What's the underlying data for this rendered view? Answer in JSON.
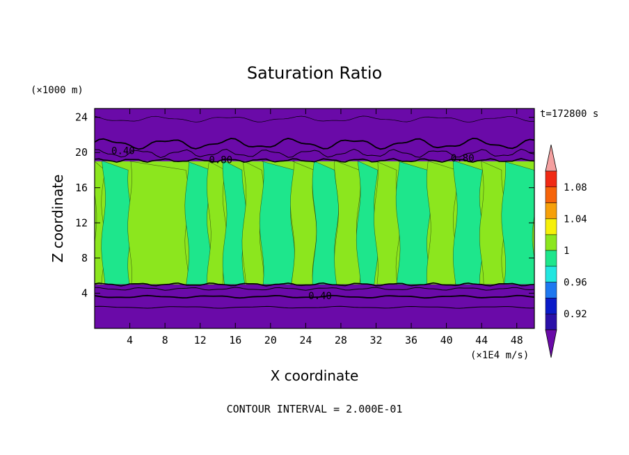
{
  "chart_data": {
    "type": "heatmap",
    "title": "Saturation Ratio",
    "xlabel": "X coordinate",
    "ylabel": "Z coordinate",
    "x_units": "(×1E4 m/s)",
    "y_units": "(×1000 m)",
    "time_label": "t=172800 s",
    "footer": "CONTOUR INTERVAL = 2.000E-01",
    "xlim": [
      0,
      50
    ],
    "ylim": [
      0,
      25
    ],
    "x_ticks": [
      4,
      8,
      12,
      16,
      20,
      24,
      28,
      32,
      36,
      40,
      44,
      48
    ],
    "y_ticks": [
      4,
      8,
      12,
      16,
      20,
      24
    ],
    "grid": false,
    "legend_position": "right",
    "colorbar": {
      "labels": [
        "0.92",
        "0.96",
        "1",
        "1.04",
        "1.08"
      ],
      "colors": [
        "#6a0aa8",
        "#2a10a8",
        "#0a1ac8",
        "#1e78f0",
        "#22e6e0",
        "#1ee68c",
        "#8ce61e",
        "#f6f00a",
        "#f6a00a",
        "#f6640a",
        "#f02a14",
        "#f4a0a0"
      ]
    },
    "layers": [
      {
        "name": "",
        "z_range": [
          0,
          5
        ],
        "saturation": "<0.92",
        "color": "#6a0aa8"
      },
      {
        "name": "",
        "z_range": [
          5,
          19
        ],
        "saturation": "0.98-1.02",
        "color": "#8ce61e"
      },
      {
        "name": "",
        "z_range": [
          19,
          25
        ],
        "saturation": "<0.92",
        "color": "#6a0aa8"
      }
    ],
    "contour_labels": [
      {
        "text": "0.40",
        "x": 1.9,
        "z": 20.2
      },
      {
        "text": "0.80",
        "x": 13,
        "z": 19.2
      },
      {
        "text": "0.80",
        "x": 40.5,
        "z": 19.4
      },
      {
        "text": "0.40",
        "x": 24.3,
        "z": 3.7
      }
    ],
    "columns": [
      {
        "x0": 0,
        "x1": 1.0,
        "level": "1"
      },
      {
        "x0": 1.0,
        "x1": 4.0,
        "level": "0.98"
      },
      {
        "x0": 4.0,
        "x1": 10.5,
        "level": "1"
      },
      {
        "x0": 10.5,
        "x1": 13.0,
        "level": "0.98"
      },
      {
        "x0": 13.0,
        "x1": 14.8,
        "level": "1"
      },
      {
        "x0": 14.8,
        "x1": 17.0,
        "level": "0.98"
      },
      {
        "x0": 17.0,
        "x1": 19.0,
        "level": "1"
      },
      {
        "x0": 19.0,
        "x1": 22.5,
        "level": "0.98"
      },
      {
        "x0": 22.5,
        "x1": 25.0,
        "level": "1"
      },
      {
        "x0": 25.0,
        "x1": 27.5,
        "level": "0.98"
      },
      {
        "x0": 27.5,
        "x1": 30.0,
        "level": "1"
      },
      {
        "x0": 30.0,
        "x1": 32.0,
        "level": "0.98"
      },
      {
        "x0": 32.0,
        "x1": 34.5,
        "level": "1"
      },
      {
        "x0": 34.5,
        "x1": 38.0,
        "level": "0.98"
      },
      {
        "x0": 38.0,
        "x1": 41.0,
        "level": "1"
      },
      {
        "x0": 41.0,
        "x1": 44.0,
        "level": "0.98"
      },
      {
        "x0": 44.0,
        "x1": 46.5,
        "level": "1"
      },
      {
        "x0": 46.5,
        "x1": 50.0,
        "level": "0.98"
      }
    ],
    "level_colors": {
      "1": "#8ce61e",
      "0.98": "#1ee68c"
    }
  }
}
